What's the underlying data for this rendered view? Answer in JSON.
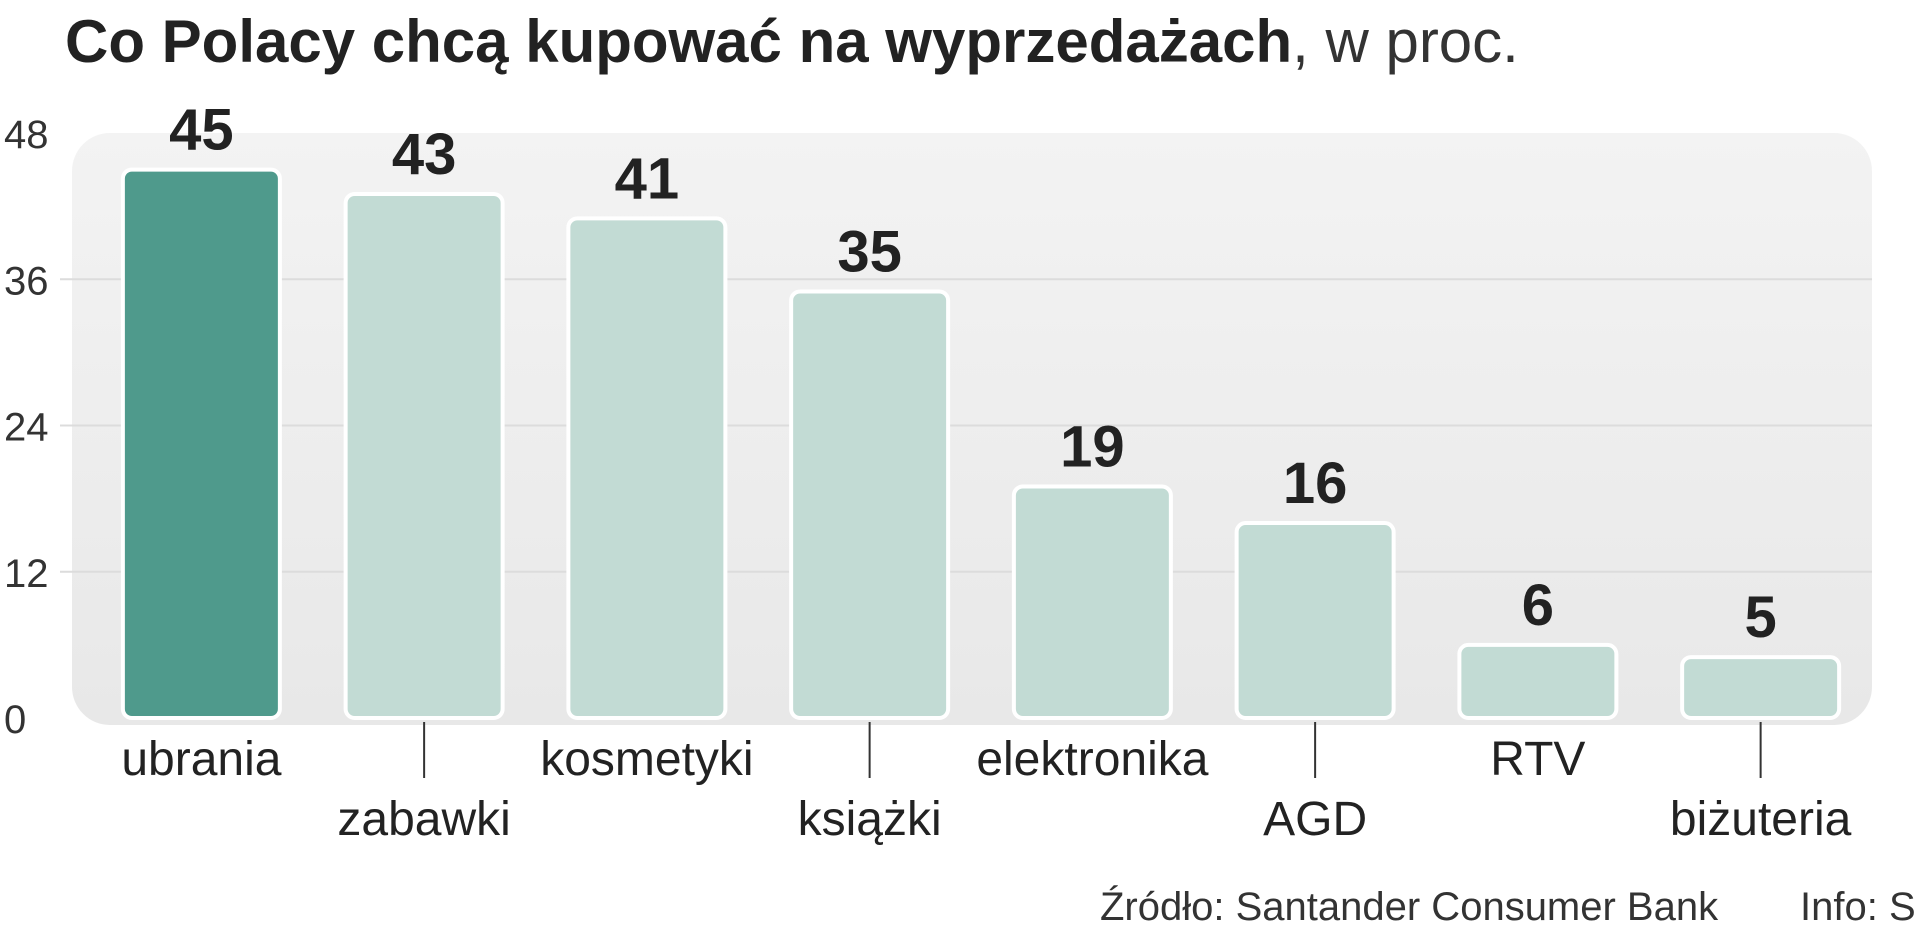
{
  "chart_data": {
    "type": "bar",
    "title": "Co Polacy chcą kupować na wyprzedażach",
    "subtitle": ", w proc.",
    "categories": [
      "ubrania",
      "zabawki",
      "kosmetyki",
      "książki",
      "elektronika",
      "AGD",
      "RTV",
      "biżuteria"
    ],
    "values": [
      45,
      43,
      41,
      35,
      19,
      16,
      6,
      5
    ],
    "ylim": [
      0,
      48
    ],
    "yticks": [
      0,
      12,
      24,
      36,
      48
    ],
    "grid": true,
    "highlight_index": 0,
    "colors": {
      "highlight": "#4f9a8c",
      "bar": "#c2dbd4",
      "panel": "#eeeeee",
      "grid": "#dcdcdc",
      "text": "#222222",
      "axis_text": "#333333"
    },
    "source": "Źródło: Santander Consumer Bank",
    "info": "Info: S"
  }
}
